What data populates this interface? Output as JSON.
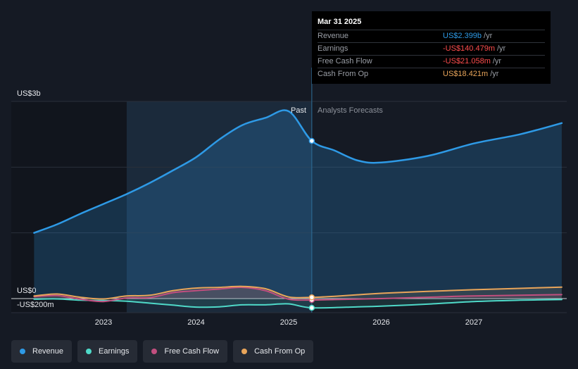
{
  "chart_data": {
    "type": "area",
    "y_unit_labels": {
      "top": "US$3b",
      "zero": "US$0",
      "bottom": "-US$200m"
    },
    "ylim": [
      -200,
      3000
    ],
    "xlim": [
      2022.2,
      2027.95
    ],
    "x_ticks": [
      {
        "x": 2023,
        "label": "2023"
      },
      {
        "x": 2024,
        "label": "2024"
      },
      {
        "x": 2025,
        "label": "2025"
      },
      {
        "x": 2026,
        "label": "2026"
      },
      {
        "x": 2027,
        "label": "2027"
      }
    ],
    "past_label": "Past",
    "forecast_label": "Analysts Forecasts",
    "highlight_band": [
      2023.25,
      2025.25
    ],
    "divider_x": 2025.25,
    "series": [
      {
        "name": "Revenue",
        "color": "#2e9ae6",
        "fill": true,
        "points": [
          [
            2022.25,
            1000
          ],
          [
            2022.5,
            1130
          ],
          [
            2022.75,
            1290
          ],
          [
            2023,
            1440
          ],
          [
            2023.25,
            1590
          ],
          [
            2023.5,
            1760
          ],
          [
            2023.75,
            1950
          ],
          [
            2024,
            2150
          ],
          [
            2024.25,
            2420
          ],
          [
            2024.5,
            2640
          ],
          [
            2024.75,
            2750
          ],
          [
            2025,
            2850
          ],
          [
            2025.25,
            2399
          ],
          [
            2025.5,
            2250
          ],
          [
            2025.75,
            2100
          ],
          [
            2026,
            2070
          ],
          [
            2026.5,
            2170
          ],
          [
            2027,
            2360
          ],
          [
            2027.5,
            2500
          ],
          [
            2027.95,
            2670
          ]
        ]
      },
      {
        "name": "Earnings",
        "color": "#4fd9c8",
        "fill": false,
        "points": [
          [
            2022.25,
            -10
          ],
          [
            2022.5,
            -5
          ],
          [
            2022.75,
            -25
          ],
          [
            2023,
            -30
          ],
          [
            2023.25,
            -40
          ],
          [
            2023.5,
            -70
          ],
          [
            2023.75,
            -100
          ],
          [
            2024,
            -130
          ],
          [
            2024.25,
            -125
          ],
          [
            2024.5,
            -95
          ],
          [
            2024.75,
            -95
          ],
          [
            2025,
            -80
          ],
          [
            2025.25,
            -140.479
          ],
          [
            2025.75,
            -125
          ],
          [
            2026,
            -115
          ],
          [
            2026.5,
            -85
          ],
          [
            2027,
            -45
          ],
          [
            2027.5,
            -25
          ],
          [
            2027.95,
            -15
          ]
        ]
      },
      {
        "name": "Free Cash Flow",
        "color": "#c24f7f",
        "fill": false,
        "points": [
          [
            2022.25,
            30
          ],
          [
            2022.5,
            45
          ],
          [
            2022.75,
            -10
          ],
          [
            2023,
            -45
          ],
          [
            2023.25,
            10
          ],
          [
            2023.5,
            15
          ],
          [
            2023.75,
            90
          ],
          [
            2024,
            120
          ],
          [
            2024.25,
            145
          ],
          [
            2024.5,
            170
          ],
          [
            2024.75,
            120
          ],
          [
            2025,
            -10
          ],
          [
            2025.25,
            -21.058
          ],
          [
            2025.5,
            -15
          ],
          [
            2026,
            0
          ],
          [
            2026.5,
            20
          ],
          [
            2027,
            40
          ],
          [
            2027.95,
            60
          ]
        ]
      },
      {
        "name": "Cash From Op",
        "color": "#e9a55a",
        "fill": false,
        "points": [
          [
            2022.25,
            40
          ],
          [
            2022.5,
            70
          ],
          [
            2022.75,
            20
          ],
          [
            2023,
            -5
          ],
          [
            2023.25,
            40
          ],
          [
            2023.5,
            50
          ],
          [
            2023.75,
            120
          ],
          [
            2024,
            160
          ],
          [
            2024.25,
            170
          ],
          [
            2024.5,
            185
          ],
          [
            2024.75,
            150
          ],
          [
            2025,
            25
          ],
          [
            2025.25,
            18.421
          ],
          [
            2025.5,
            35
          ],
          [
            2026,
            80
          ],
          [
            2026.5,
            110
          ],
          [
            2027,
            135
          ],
          [
            2027.5,
            155
          ],
          [
            2027.95,
            175
          ]
        ]
      }
    ],
    "markers_x": 2025.25
  },
  "tooltip": {
    "date": "Mar 31 2025",
    "rows": [
      {
        "label": "Revenue",
        "value": "US$2.399b",
        "unit": "/yr",
        "color": "#2e9ae6"
      },
      {
        "label": "Earnings",
        "value": "-US$140.479m",
        "unit": "/yr",
        "color": "#ff4d4d"
      },
      {
        "label": "Free Cash Flow",
        "value": "-US$21.058m",
        "unit": "/yr",
        "color": "#ff4d4d"
      },
      {
        "label": "Cash From Op",
        "value": "US$18.421m",
        "unit": "/yr",
        "color": "#e9a55a"
      }
    ]
  },
  "legend": [
    {
      "label": "Revenue",
      "color": "#2e9ae6"
    },
    {
      "label": "Earnings",
      "color": "#4fd9c8"
    },
    {
      "label": "Free Cash Flow",
      "color": "#c24f7f"
    },
    {
      "label": "Cash From Op",
      "color": "#e9a55a"
    }
  ]
}
